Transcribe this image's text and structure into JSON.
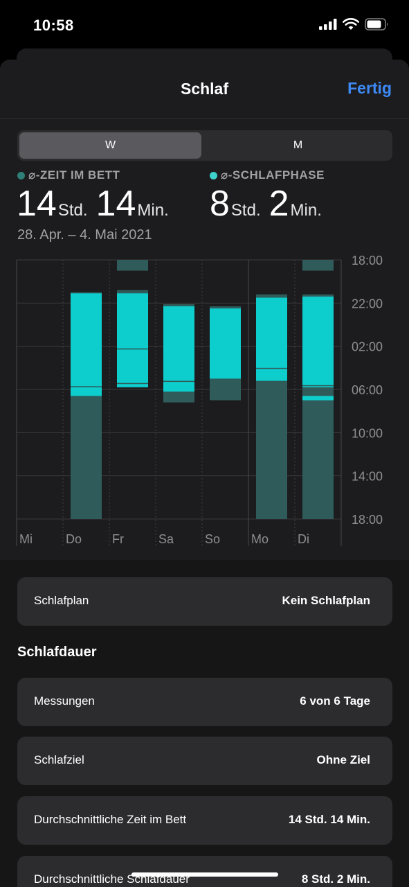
{
  "status_bar": {
    "time": "10:58"
  },
  "nav": {
    "title": "Schlaf",
    "done_label": "Fertig"
  },
  "segmented": {
    "week": "W",
    "month": "M"
  },
  "stats": {
    "in_bed": {
      "label": "⌀-ZEIT IM BETT",
      "hours": "14",
      "hours_unit": "Std.",
      "minutes": "14",
      "minutes_unit": "Min.",
      "color": "#2f7e78"
    },
    "asleep": {
      "label": "⌀-SCHLAFPHASE",
      "hours": "8",
      "hours_unit": "Std.",
      "minutes": "2",
      "minutes_unit": "Min.",
      "color": "#3ed0cb"
    },
    "date_range": "28. Apr. – 4. Mai 2021"
  },
  "chart_data": {
    "type": "bar",
    "y_ticks": [
      "18:00",
      "22:00",
      "02:00",
      "06:00",
      "10:00",
      "14:00",
      "18:00"
    ],
    "categories": [
      "Mi",
      "Do",
      "Fr",
      "Sa",
      "So",
      "Mo",
      "Di"
    ],
    "colors": {
      "in_bed": "#2f5c5a",
      "asleep": "#0ecdcd"
    },
    "series": [
      {
        "day": "Do",
        "in_bed": [
          [
            21.0,
            42.0
          ]
        ],
        "asleep": [
          [
            21.1,
            29.7
          ],
          [
            29.8,
            30.6
          ]
        ]
      },
      {
        "day": "Fr",
        "in_bed": [
          [
            18.0,
            19.0
          ],
          [
            20.8,
            29.8
          ]
        ],
        "asleep": [
          [
            21.1,
            26.2
          ],
          [
            26.3,
            29.4
          ],
          [
            29.5,
            29.8
          ]
        ]
      },
      {
        "day": "Sa",
        "in_bed": [
          [
            22.1,
            31.2
          ]
        ],
        "asleep": [
          [
            22.3,
            29.2
          ],
          [
            29.3,
            30.2
          ]
        ]
      },
      {
        "day": "So",
        "in_bed": [
          [
            22.3,
            31.0
          ]
        ],
        "asleep": [
          [
            22.5,
            29.0
          ]
        ]
      },
      {
        "day": "Mo",
        "in_bed": [
          [
            21.2,
            42.0
          ]
        ],
        "asleep": [
          [
            21.5,
            28.0
          ],
          [
            28.1,
            29.2
          ]
        ]
      },
      {
        "day": "Di",
        "in_bed": [
          [
            18.0,
            19.0
          ],
          [
            21.2,
            42.0
          ]
        ],
        "asleep": [
          [
            21.4,
            29.6
          ],
          [
            29.7,
            29.8
          ],
          [
            30.6,
            31.0
          ]
        ]
      }
    ]
  },
  "list": {
    "schedule": {
      "label": "Schlafplan",
      "value": "Kein Schlafplan"
    },
    "section_title": "Schlafdauer",
    "rows": [
      {
        "label": "Messungen",
        "value": "6 von 6 Tage"
      },
      {
        "label": "Schlafziel",
        "value": "Ohne Ziel"
      },
      {
        "label": "Durchschnittliche Zeit im Bett",
        "value": "14 Std. 14 Min."
      },
      {
        "label": "Durchschnittliche Schlafdauer",
        "value": "8 Std. 2 Min."
      }
    ]
  }
}
